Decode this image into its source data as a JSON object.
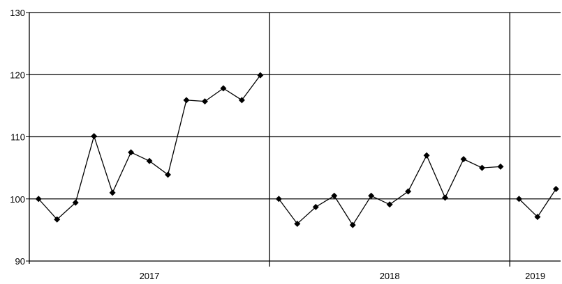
{
  "chart_data": {
    "type": "line",
    "title": "",
    "xlabel": "",
    "ylabel": "",
    "ylim": [
      90,
      130
    ],
    "yticks": [
      90,
      100,
      110,
      120,
      130
    ],
    "grid": true,
    "legend": "none",
    "line_color": "#000000",
    "marker": "diamond",
    "groups": [
      {
        "label": "2017",
        "values": [
          100,
          96.7,
          99.4,
          110.1,
          101.0,
          107.5,
          106.1,
          103.9,
          115.9,
          115.7,
          117.8,
          115.9,
          119.9
        ]
      },
      {
        "label": "2018",
        "values": [
          100,
          96.0,
          98.7,
          100.5,
          95.8,
          100.5,
          99.1,
          101.2,
          107.0,
          100.2,
          106.4,
          105.0,
          105.2
        ]
      },
      {
        "label": "2019",
        "values": [
          100,
          97.1,
          101.6
        ]
      }
    ]
  }
}
